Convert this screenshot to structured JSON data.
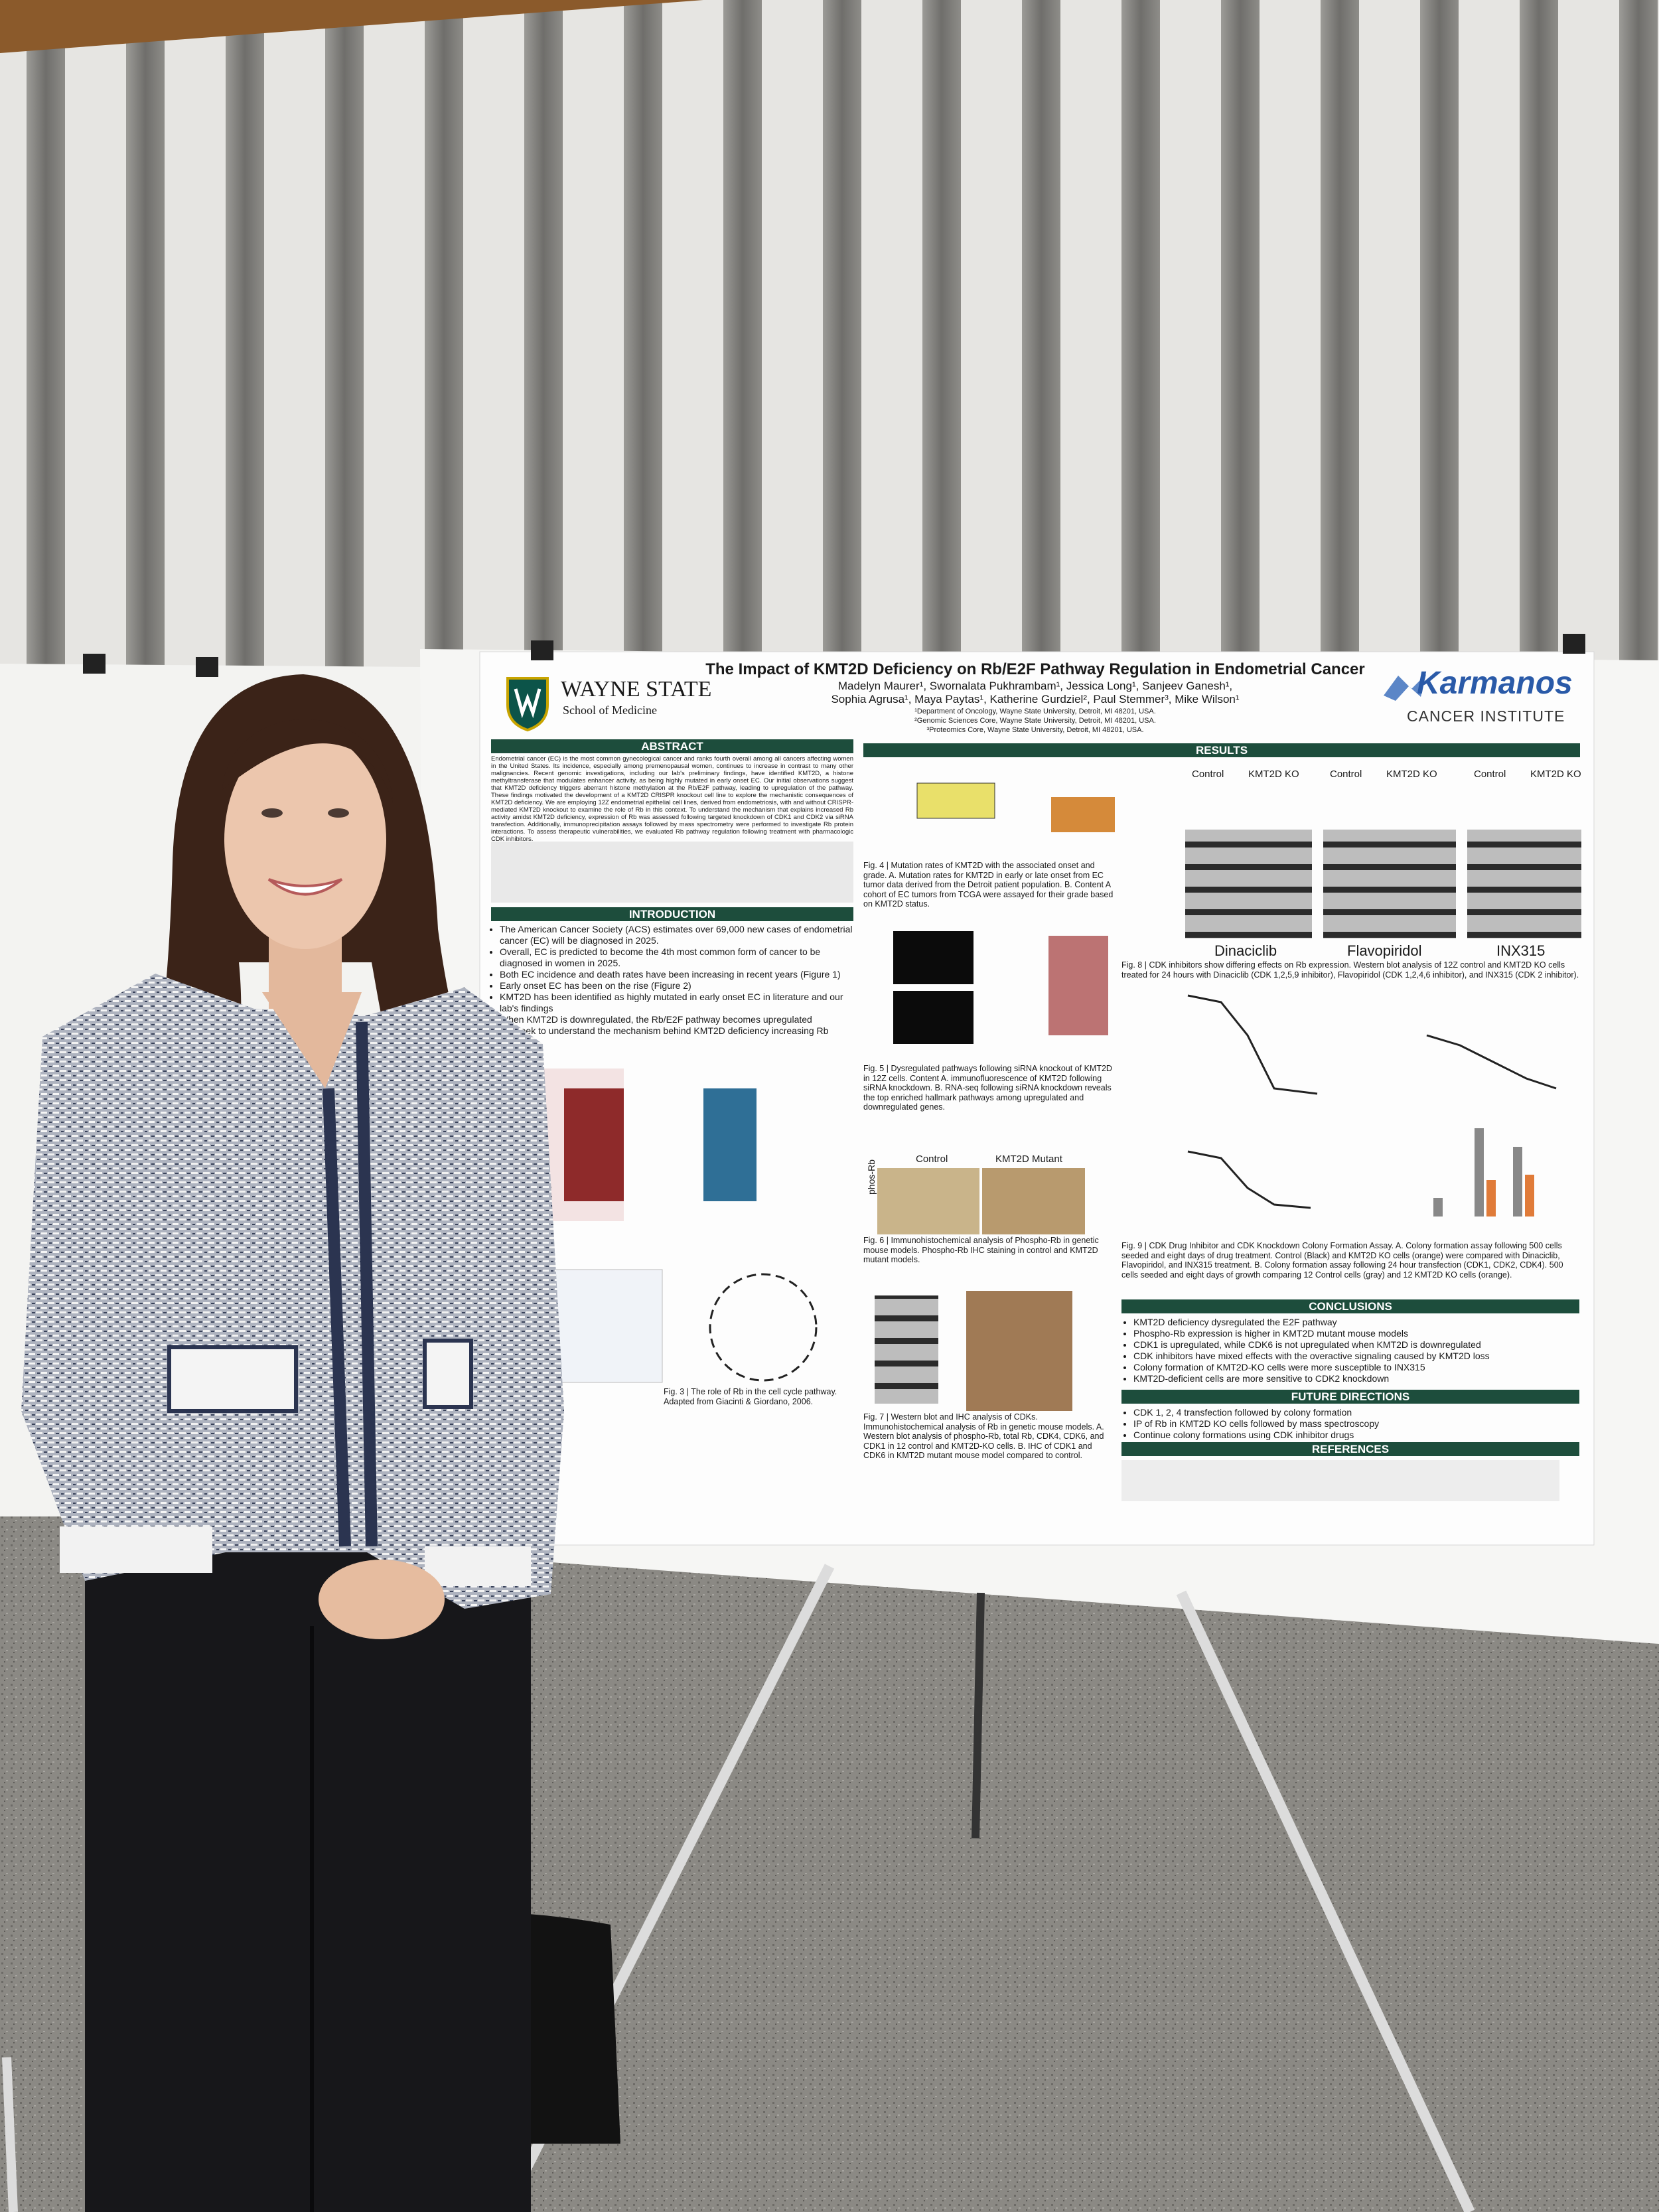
{
  "poster": {
    "title": "The Impact of KMT2D Deficiency on Rb/E2F Pathway Regulation in Endometrial Cancer",
    "authors": [
      "Madelyn Maurer¹, Swornalata Pukhrambam¹, Jessica Long¹, Sanjeev Ganesh¹,",
      "Sophia Agrusa¹, Maya Paytas¹, Katherine Gurdziel², Paul Stemmer³, Mike Wilson¹"
    ],
    "affiliations": [
      "¹Department of Oncology, Wayne State University, Detroit, MI 48201, USA.",
      "²Genomic Sciences Core, Wayne State University, Detroit, MI 48201, USA.",
      "³Proteomics Core, Wayne State University, Detroit, MI 48201, USA."
    ],
    "left_logo": {
      "name": "WAYNE STATE",
      "subtitle": "School of Medicine"
    },
    "right_logo": {
      "name": "Karmanos",
      "subtitle": "CANCER INSTITUTE"
    },
    "abstract": {
      "heading": "ABSTRACT",
      "text": "Endometrial cancer (EC) is the most common gynecological cancer and ranks fourth overall among all cancers affecting women in the United States. Its incidence, especially among premenopausal women, continues to increase in contrast to many other malignancies. Recent genomic investigations, including our lab's preliminary findings, have identified KMT2D, a histone methyltransferase that modulates enhancer activity, as being highly mutated in early onset EC. Our initial observations suggest that KMT2D deficiency triggers aberrant histone methylation at the Rb/E2F pathway, leading to upregulation of the pathway. These findings motivated the development of a KMT2D CRISPR knockout cell line to explore the mechanistic consequences of KMT2D deficiency. We are employing 12Z endometrial epithelial cell lines, derived from endometriosis, with and without CRISPR-mediated KMT2D knockout to examine the role of Rb in this context. To understand the mechanism that explains increased Rb activity amidst KMT2D deficiency, expression of Rb was assessed following targeted knockdown of CDK1 and CDK2 via siRNA transfection. Additionally, immunoprecipitation assays followed by mass spectrometry were performed to investigate Rb protein interactions. To assess therapeutic vulnerabilities, we evaluated Rb pathway regulation following treatment with pharmacologic CDK inhibitors."
    },
    "introduction": {
      "heading": "INTRODUCTION",
      "bullets": [
        "The American Cancer Society (ACS) estimates over 69,000 new cases of endometrial cancer (EC) will be diagnosed in 2025.",
        "Overall, EC is predicted to become the 4th most common form of cancer to be diagnosed in women in 2025.",
        "Both EC incidence and death rates have been increasing in recent years (Figure 1)",
        "Early onset EC has been on the rise (Figure 2)",
        "KMT2D has been identified as highly mutated in early onset EC in literature and our lab's findings",
        "When KMT2D is downregulated, the Rb/E2F pathway becomes upregulated",
        "We seek to understand the mechanism behind KMT2D deficiency increasing Rb activity"
      ]
    },
    "results": {
      "heading": "RESULTS",
      "figures": [
        "Fig. 3 | The role of Rb in the cell cycle pathway. Adapted from Giacinti & Giordano, 2006.",
        "Fig. 4 | Mutation rates of KMT2D with the associated onset and grade. A. Mutation rates for KMT2D in early or late onset from EC tumor data derived from the Detroit patient population. B. Content A cohort of EC tumors from TCGA were assayed for their grade based on KMT2D status.",
        "Fig. 5 | Dysregulated pathways following siRNA knockout of KMT2D in 12Z cells. Content A. immunofluorescence of KMT2D following siRNA knockdown. B. RNA-seq following siRNA knockdown reveals the top enriched hallmark pathways among upregulated and downregulated genes.",
        "Fig. 6 | Immunohistochemical analysis of Phospho-Rb in genetic mouse models. Phospho-Rb IHC staining in control and KMT2D mutant models.",
        "Fig. 7 | Western blot and IHC analysis of CDKs. Immunohistochemical analysis of Rb in genetic mouse models. A. Western blot analysis of phospho-Rb, total Rb, CDK4, CDK6, and CDK1 in 12 control and KMT2D-KO cells. B. IHC of CDK1 and CDK6 in KMT2D mutant mouse model compared to control.",
        "Fig. 8 | CDK inhibitors show differing effects on Rb expression. Western blot analysis of 12Z control and KMT2D KO cells treated for 24 hours with Dinaciclib (CDK 1,2,5,9 inhibitor), Flavopiridol (CDK 1,2,4,6 inhibitor), and INX315 (CDK 2 inhibitor).",
        "Fig. 9 | CDK Drug Inhibitor and CDK Knockdown Colony Formation Assay. A. Colony formation assay following 500 cells seeded and eight days of drug treatment. Control (Black) and KMT2D KO cells (orange) were compared with Dinaciclib, Flavopiridol, and INX315 treatment. B. Colony formation assay following 24 hour transfection (CDK1, CDK2, CDK4). 500 cells seeded and eight days of growth comparing 12 Control cells (gray) and 12 KMT2D KO cells (orange)."
      ],
      "drugs": [
        "Dinaciclib",
        "Flavopiridol",
        "INX315"
      ],
      "blot_headers": [
        "Control",
        "KMT2D KO"
      ],
      "ihc_labels": [
        "Control",
        "KMT2D Mutant",
        "phos-Rb"
      ]
    },
    "conclusions": {
      "heading": "CONCLUSIONS",
      "bullets": [
        "KMT2D deficiency dysregulated the E2F pathway",
        "Phospho-Rb expression is higher in KMT2D mutant mouse models",
        "CDK1 is upregulated, while CDK6 is not upregulated when KMT2D is downregulated",
        "CDK inhibitors have mixed effects with the overactive signaling caused by KMT2D loss",
        "Colony formation of KMT2D-KO cells were more susceptible to INX315",
        "KMT2D-deficient cells are more sensitive to CDK2 knockdown"
      ]
    },
    "future_directions": {
      "heading": "FUTURE DIRECTIONS",
      "bullets": [
        "CDK 1, 2, 4 transfection followed by colony formation",
        "IP of Rb in KMT2D KO cells followed by mass spectroscopy",
        "Continue colony formations using CDK inhibitor drugs"
      ]
    },
    "references": {
      "heading": "REFERENCES"
    }
  }
}
